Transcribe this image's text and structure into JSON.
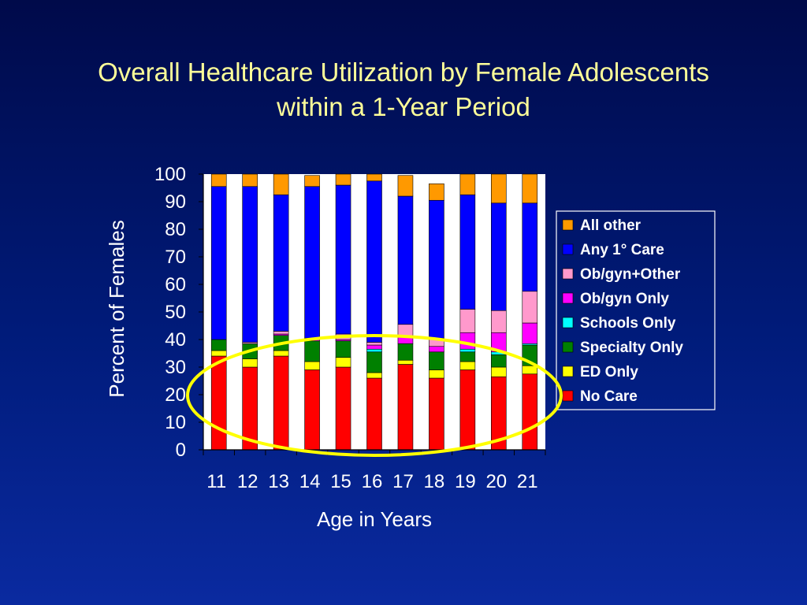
{
  "slide": {
    "title_line1": "Overall Healthcare Utilization by Female Adolescents",
    "title_line2": "within a 1-Year Period"
  },
  "chart_data": {
    "type": "bar",
    "stacked": true,
    "xlabel": "Age in Years",
    "ylabel": "Percent of Females",
    "ylim": [
      0,
      100
    ],
    "yticks": [
      0,
      10,
      20,
      30,
      40,
      50,
      60,
      70,
      80,
      90,
      100
    ],
    "categories": [
      "11",
      "12",
      "13",
      "14",
      "15",
      "16",
      "17",
      "18",
      "19",
      "20",
      "21"
    ],
    "legend_position": "right",
    "series": [
      {
        "name": "No Care",
        "color": "#ff0000",
        "values": [
          34,
          30,
          34,
          29,
          30,
          26,
          31,
          26,
          29,
          26.5,
          27.5
        ]
      },
      {
        "name": "ED Only",
        "color": "#ffff00",
        "values": [
          2,
          3,
          2,
          3,
          3.5,
          2,
          1.5,
          3,
          3,
          3.5,
          3
        ]
      },
      {
        "name": "Specialty Only",
        "color": "#008000",
        "values": [
          4,
          5.5,
          5.5,
          7.5,
          6,
          7.5,
          6,
          6.5,
          3.5,
          4.5,
          7.5
        ]
      },
      {
        "name": "Schools Only",
        "color": "#00ffff",
        "values": [
          0,
          0,
          0,
          0,
          0,
          1,
          0,
          0,
          1,
          1,
          0.5
        ]
      },
      {
        "name": "Ob/gyn Only",
        "color": "#ff00ff",
        "values": [
          0,
          0,
          0.5,
          0.5,
          0.5,
          1.5,
          2.5,
          2,
          6,
          7,
          7.5
        ]
      },
      {
        "name": "Ob/gyn+Other",
        "color": "#ff99cc",
        "values": [
          0,
          0.5,
          1,
          0.5,
          2,
          1,
          4.5,
          3,
          8.5,
          8,
          11.5
        ]
      },
      {
        "name": "Any 1° Care",
        "color": "#0000ff",
        "values": [
          55.5,
          56.5,
          49.5,
          55,
          54,
          58.5,
          46.5,
          50,
          41.5,
          39,
          32
        ]
      },
      {
        "name": "All other",
        "color": "#ff9900",
        "values": [
          4.5,
          4.5,
          7.5,
          4,
          4,
          2.5,
          7.5,
          6,
          7.5,
          10.5,
          10.5
        ]
      }
    ],
    "legend_order": [
      "All other",
      "Any 1° Care",
      "Ob/gyn+Other",
      "Ob/gyn Only",
      "Schools Only",
      "Specialty Only",
      "ED Only",
      "No Care"
    ],
    "annotation": {
      "shape": "ellipse",
      "color": "#ffff00",
      "description": "highlight"
    }
  }
}
